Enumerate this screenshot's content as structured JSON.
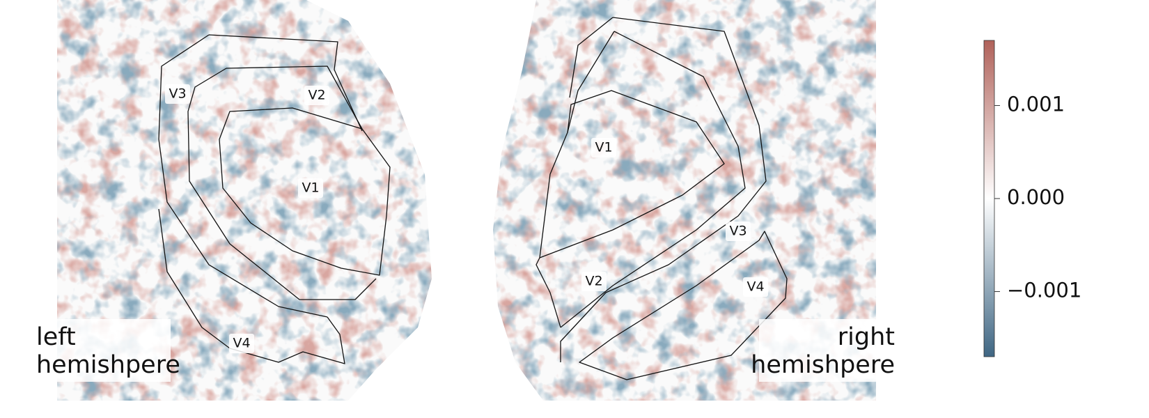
{
  "chart_data": {
    "type": "heatmap",
    "panels": [
      {
        "label_lines": [
          "left",
          "hemishpere"
        ],
        "regions": [
          "V3",
          "V2",
          "V1",
          "V4"
        ]
      },
      {
        "label_lines": [
          "right",
          "hemishpere"
        ],
        "regions": [
          "V1",
          "V2",
          "V3",
          "V4"
        ]
      }
    ],
    "colorbar": {
      "lim": [
        -0.0017,
        0.0017
      ],
      "ticks": [
        {
          "value": -0.001,
          "label": "−0.001"
        },
        {
          "value": 0,
          "label": "0.000"
        },
        0.001
      ],
      "colors": [
        "#3f6683",
        "#ffffff",
        "#b0625a"
      ]
    }
  }
}
